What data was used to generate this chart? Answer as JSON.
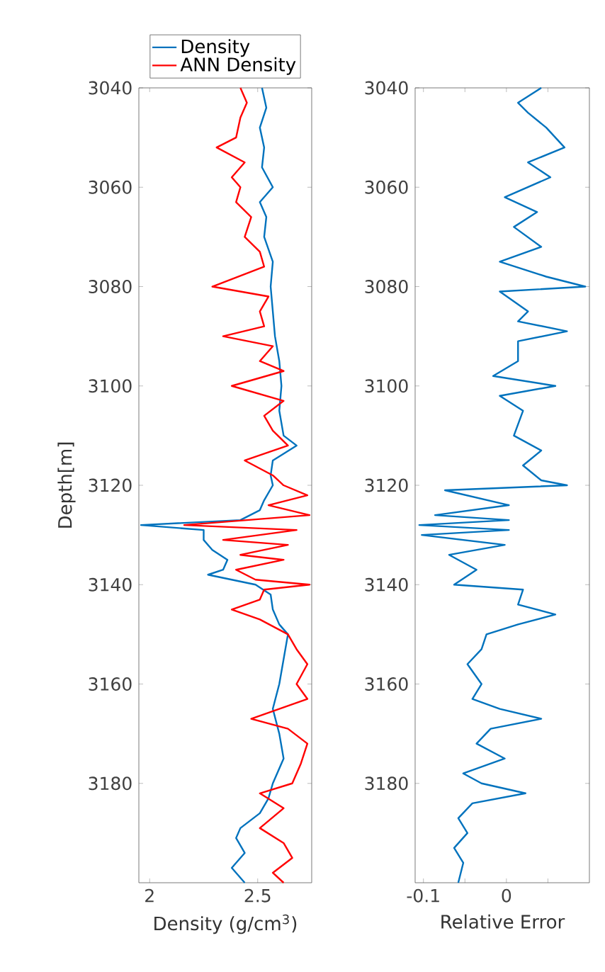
{
  "chart_data": [
    {
      "type": "line",
      "orientation": "horizontal",
      "xlabel": "Density (g/cm$^{3}$)",
      "ylabel": "Depth[m]",
      "xlim": [
        1.95,
        2.75
      ],
      "xticks": [
        2,
        2.5
      ],
      "ylim": [
        3200,
        3040
      ],
      "yticks": [
        3040,
        3060,
        3080,
        3100,
        3120,
        3140,
        3160,
        3180
      ],
      "legend": "top",
      "series": [
        {
          "name": "Density",
          "color": "#0072bd",
          "x": [
            3040,
            3044,
            3048,
            3052,
            3056,
            3060,
            3063,
            3066,
            3070,
            3075,
            3080,
            3085,
            3090,
            3095,
            3100,
            3105,
            3110,
            3112,
            3115,
            3118,
            3120,
            3123,
            3125,
            3127,
            3128,
            3129,
            3131,
            3133,
            3135,
            3137,
            3138,
            3140,
            3142,
            3145,
            3148,
            3150,
            3155,
            3160,
            3165,
            3170,
            3175,
            3180,
            3183,
            3186,
            3189,
            3191,
            3194,
            3197,
            3200
          ],
          "values": [
            2.52,
            2.54,
            2.51,
            2.53,
            2.52,
            2.57,
            2.51,
            2.54,
            2.53,
            2.57,
            2.56,
            2.57,
            2.58,
            2.6,
            2.61,
            2.6,
            2.62,
            2.68,
            2.57,
            2.56,
            2.57,
            2.53,
            2.51,
            2.42,
            1.96,
            2.25,
            2.25,
            2.29,
            2.36,
            2.34,
            2.27,
            2.49,
            2.56,
            2.57,
            2.6,
            2.64,
            2.62,
            2.6,
            2.57,
            2.6,
            2.62,
            2.57,
            2.55,
            2.51,
            2.42,
            2.4,
            2.44,
            2.38,
            2.44
          ]
        },
        {
          "name": "ANN Density",
          "color": "#ff0000",
          "x": [
            3040,
            3043,
            3046,
            3050,
            3052,
            3055,
            3058,
            3060,
            3063,
            3066,
            3070,
            3073,
            3076,
            3080,
            3082,
            3085,
            3088,
            3090,
            3092,
            3095,
            3097,
            3100,
            3103,
            3106,
            3109,
            3112,
            3115,
            3118,
            3120,
            3122,
            3124,
            3126,
            3128,
            3129,
            3131,
            3132,
            3134,
            3135,
            3137,
            3139,
            3140,
            3141,
            3143,
            3145,
            3147,
            3150,
            3153,
            3156,
            3160,
            3163,
            3167,
            3169,
            3172,
            3176,
            3180,
            3182,
            3185,
            3189,
            3192,
            3195,
            3198,
            3200
          ],
          "values": [
            2.42,
            2.45,
            2.42,
            2.4,
            2.31,
            2.44,
            2.38,
            2.42,
            2.4,
            2.47,
            2.44,
            2.51,
            2.53,
            2.29,
            2.55,
            2.51,
            2.53,
            2.34,
            2.57,
            2.51,
            2.62,
            2.38,
            2.62,
            2.53,
            2.57,
            2.64,
            2.44,
            2.57,
            2.62,
            2.73,
            2.55,
            2.74,
            2.16,
            2.68,
            2.34,
            2.64,
            2.42,
            2.62,
            2.4,
            2.49,
            2.74,
            2.53,
            2.51,
            2.38,
            2.51,
            2.64,
            2.68,
            2.73,
            2.68,
            2.73,
            2.47,
            2.64,
            2.73,
            2.7,
            2.66,
            2.51,
            2.62,
            2.51,
            2.62,
            2.66,
            2.57,
            2.62
          ]
        }
      ]
    },
    {
      "type": "line",
      "orientation": "horizontal",
      "xlabel": "Relative Error",
      "xlim": [
        -0.11,
        0.1
      ],
      "xticks": [
        -0.1,
        {
          "value": -0.05,
          "label": null
        },
        0,
        {
          "value": 0.05,
          "label": null
        }
      ],
      "ylim": [
        3200,
        3040
      ],
      "yticks": [
        3040,
        3060,
        3080,
        3100,
        3120,
        3140,
        3160,
        3180
      ],
      "series": [
        {
          "color": "#0072bd",
          "x": [
            3040,
            3043,
            3045,
            3048,
            3052,
            3055,
            3058,
            3062,
            3065,
            3068,
            3072,
            3075,
            3078,
            3080,
            3081,
            3085,
            3087,
            3089,
            3091,
            3095,
            3098,
            3100,
            3102,
            3105,
            3110,
            3113,
            3116,
            3119,
            3120,
            3121,
            3124,
            3126,
            3127,
            3128,
            3129,
            3130,
            3132,
            3134,
            3137,
            3140,
            3141,
            3144,
            3146,
            3148,
            3150,
            3153,
            3156,
            3160,
            3163,
            3165,
            3167,
            3169,
            3172,
            3175,
            3178,
            3180,
            3182,
            3184,
            3187,
            3190,
            3193,
            3196,
            3200
          ],
          "values": [
            0.042,
            0.014,
            0.026,
            0.048,
            0.07,
            0.026,
            0.053,
            -0.002,
            0.037,
            0.009,
            0.042,
            -0.008,
            0.048,
            0.095,
            -0.008,
            0.026,
            0.014,
            0.073,
            0.014,
            0.014,
            -0.016,
            0.059,
            -0.008,
            0.02,
            0.009,
            0.042,
            0.02,
            0.042,
            0.073,
            -0.074,
            0.003,
            -0.086,
            0.003,
            -0.105,
            0.003,
            -0.102,
            -0.002,
            -0.069,
            -0.036,
            -0.063,
            0.02,
            0.014,
            0.059,
            0.014,
            -0.024,
            -0.03,
            -0.047,
            -0.03,
            -0.041,
            -0.008,
            0.042,
            -0.019,
            -0.036,
            -0.002,
            -0.052,
            -0.03,
            0.023,
            -0.041,
            -0.058,
            -0.047,
            -0.063,
            -0.052,
            -0.058
          ]
        }
      ]
    }
  ]
}
